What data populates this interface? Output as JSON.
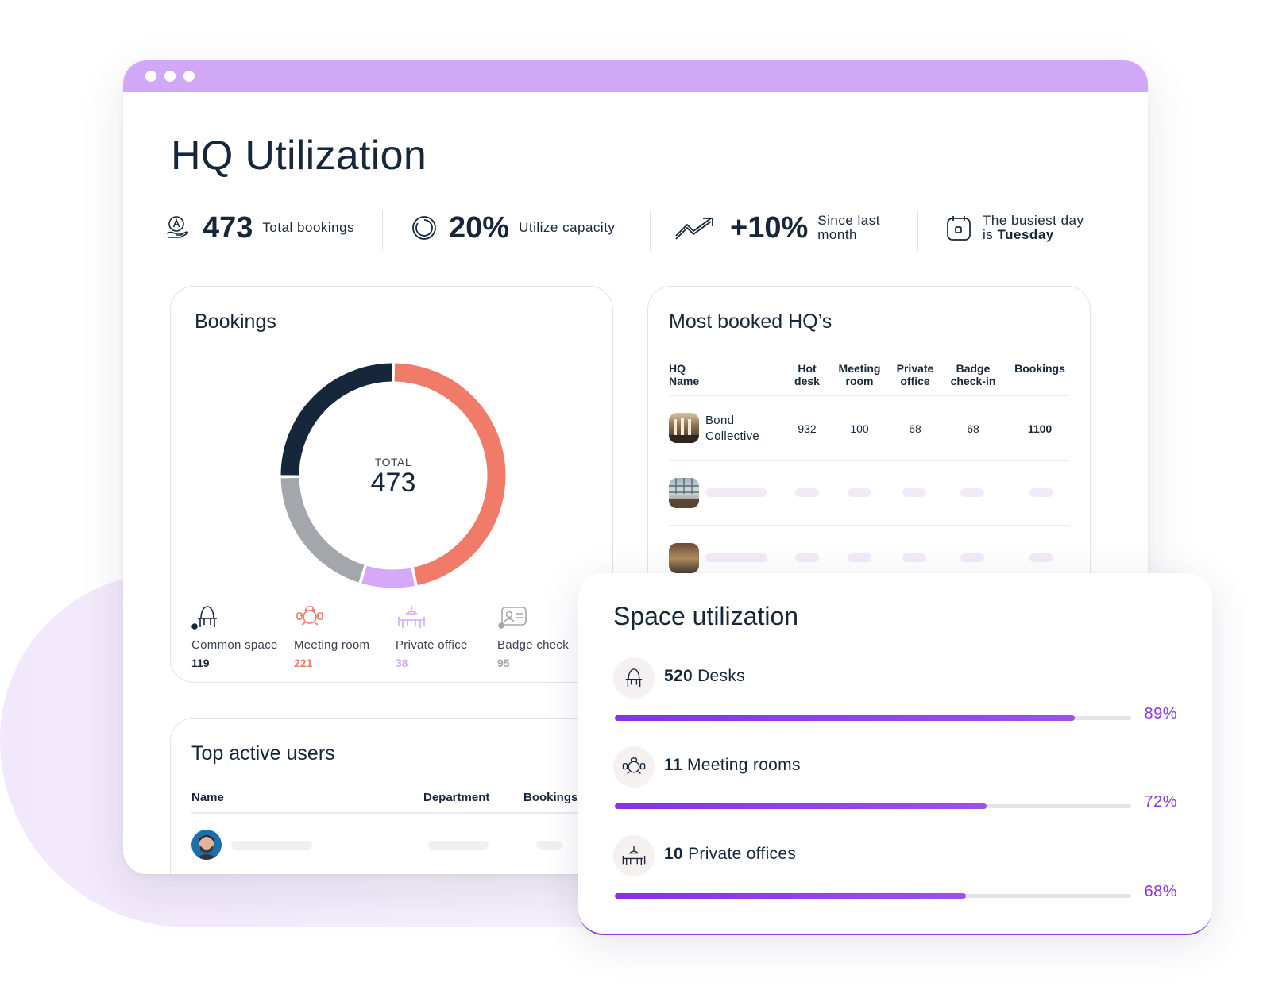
{
  "page": {
    "title": "HQ Utilization"
  },
  "colors": {
    "accent": "#d1a8f6",
    "primary_purple": "#8c36e3",
    "navy": "#16263b",
    "coral": "#ef7b68",
    "lilac": "#d6a8f8",
    "gray": "#a3a7ac"
  },
  "stats": [
    {
      "icon": "hand-logo-icon",
      "value": "473",
      "label": "Total bookings"
    },
    {
      "icon": "circle-progress-icon",
      "value": "20%",
      "label": "Utilize capacity"
    },
    {
      "icon": "trend-up-icon",
      "value": "+10%",
      "label_line1": "Since last",
      "label_line2": "month"
    },
    {
      "icon": "calendar-icon",
      "label_line1": "The busiest day",
      "label_prefix": "is",
      "label_bold": "Tuesday"
    }
  ],
  "bookings": {
    "title": "Bookings",
    "total_label": "TOTAL",
    "total_value": "473",
    "legend": [
      {
        "name": "Common space",
        "value": "119",
        "color": "#16263b",
        "icon": "desk-chair-icon"
      },
      {
        "name": "Meeting room",
        "value": "221",
        "color": "#ef7b68",
        "icon": "meeting-room-icon"
      },
      {
        "name": "Private office",
        "value": "38",
        "color": "#d6a8f8",
        "icon": "private-office-icon"
      },
      {
        "name": "Badge check",
        "value": "95",
        "color": "#a3a7ac",
        "icon": "badge-icon"
      }
    ]
  },
  "most_booked": {
    "title": "Most booked HQ’s",
    "columns": [
      {
        "line1": "HQ",
        "line2": "Name"
      },
      {
        "line1": "Hot",
        "line2": "desk"
      },
      {
        "line1": "Meeting",
        "line2": "room"
      },
      {
        "line1": "Private",
        "line2": "office"
      },
      {
        "line1": "Badge",
        "line2": "check-in"
      },
      {
        "line1": "Bookings",
        "line2": ""
      }
    ],
    "rows": [
      {
        "name_line1": "Bond",
        "name_line2": "Collective",
        "hot_desk": "932",
        "meeting_room": "100",
        "private_office": "68",
        "badge_checkin": "68",
        "bookings": "1100"
      }
    ]
  },
  "top_users": {
    "title": "Top active users",
    "columns": [
      "Name",
      "Department",
      "Bookings"
    ]
  },
  "space_utilization": {
    "title": "Space utilization",
    "items": [
      {
        "icon": "desk-chair-icon",
        "count": "520",
        "label": "Desks",
        "percent_label": "89%",
        "percent": 0.89
      },
      {
        "icon": "meeting-room-icon",
        "count": "11",
        "label": "Meeting rooms",
        "percent_label": "72%",
        "percent": 0.72
      },
      {
        "icon": "private-office-icon",
        "count": "10",
        "label": "Private offices",
        "percent_label": "68%",
        "percent": 0.68
      }
    ]
  },
  "chart_data": {
    "type": "pie",
    "title": "Bookings",
    "categories": [
      "Meeting room",
      "Private office",
      "Badge check",
      "Common space"
    ],
    "values": [
      221,
      38,
      95,
      119
    ],
    "colors": [
      "#ef7b68",
      "#d6a8f8",
      "#a3a7ac",
      "#16263b"
    ],
    "total": 473
  }
}
